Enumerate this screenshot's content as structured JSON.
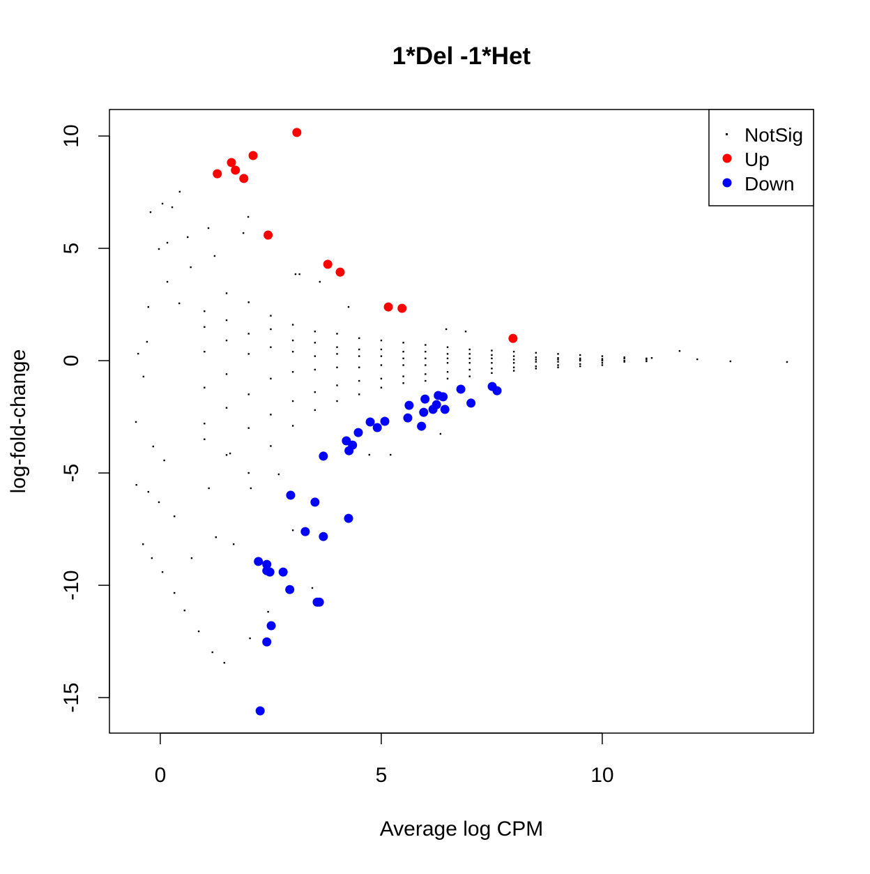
{
  "chart_data": {
    "type": "scatter",
    "title": "1*Del -1*Het",
    "xlabel": "Average log CPM",
    "ylabel": "log-fold-change",
    "xlim": [
      -1.15,
      14.78
    ],
    "ylim": [
      -16.58,
      11.18
    ],
    "xticks": [
      0,
      5,
      10
    ],
    "yticks": [
      -15,
      -10,
      -5,
      0,
      5,
      10
    ],
    "grid": false,
    "legend": {
      "position": "top-right",
      "entries": [
        {
          "label": "NotSig",
          "color": "#000000",
          "marker": "dot"
        },
        {
          "label": "Up",
          "color": "#ff0000",
          "marker": "circle"
        },
        {
          "label": "Down",
          "color": "#0000ff",
          "marker": "circle"
        }
      ]
    },
    "series": [
      {
        "name": "Up",
        "color": "#ff0000",
        "points": [
          [
            1.29,
            8.32
          ],
          [
            1.61,
            8.82
          ],
          [
            1.7,
            8.48
          ],
          [
            1.89,
            8.11
          ],
          [
            2.1,
            9.13
          ],
          [
            3.09,
            10.16
          ],
          [
            2.44,
            5.59
          ],
          [
            3.79,
            4.29
          ],
          [
            4.07,
            3.94
          ],
          [
            5.16,
            2.39
          ],
          [
            5.47,
            2.33
          ],
          [
            7.98,
            0.99
          ]
        ]
      },
      {
        "name": "Down",
        "color": "#0000ff",
        "points": [
          [
            2.26,
            -15.59
          ],
          [
            2.41,
            -12.52
          ],
          [
            2.51,
            -11.8
          ],
          [
            3.55,
            -10.75
          ],
          [
            3.6,
            -10.75
          ],
          [
            2.93,
            -10.19
          ],
          [
            2.78,
            -9.41
          ],
          [
            2.22,
            -8.94
          ],
          [
            2.41,
            -9.07
          ],
          [
            2.48,
            -9.41
          ],
          [
            2.41,
            -9.35
          ],
          [
            3.28,
            -7.61
          ],
          [
            3.69,
            -7.83
          ],
          [
            4.26,
            -7.02
          ],
          [
            2.95,
            -5.99
          ],
          [
            3.5,
            -6.3
          ],
          [
            3.69,
            -4.25
          ],
          [
            4.27,
            -4.01
          ],
          [
            4.21,
            -3.57
          ],
          [
            4.35,
            -3.76
          ],
          [
            4.48,
            -3.2
          ],
          [
            4.75,
            -2.73
          ],
          [
            4.91,
            -2.98
          ],
          [
            5.08,
            -2.7
          ],
          [
            5.6,
            -2.55
          ],
          [
            5.63,
            -1.99
          ],
          [
            5.91,
            -2.92
          ],
          [
            5.96,
            -2.3
          ],
          [
            5.99,
            -1.71
          ],
          [
            6.17,
            -2.17
          ],
          [
            6.25,
            -1.96
          ],
          [
            6.29,
            -1.55
          ],
          [
            6.4,
            -1.61
          ],
          [
            6.44,
            -2.17
          ],
          [
            6.8,
            -1.27
          ],
          [
            7.03,
            -1.89
          ],
          [
            7.51,
            -1.15
          ],
          [
            7.62,
            -1.34
          ]
        ]
      },
      {
        "name": "NotSig",
        "color": "#000000",
        "points": [
          [
            0.44,
            7.52
          ],
          [
            0.05,
            6.99
          ],
          [
            -0.22,
            6.61
          ],
          [
            0.27,
            6.83
          ],
          [
            1.09,
            5.9
          ],
          [
            1.99,
            6.4
          ],
          [
            -0.03,
            4.97
          ],
          [
            0.16,
            5.25
          ],
          [
            0.62,
            5.5
          ],
          [
            1.88,
            5.68
          ],
          [
            0.16,
            3.51
          ],
          [
            0.69,
            4.16
          ],
          [
            1.23,
            4.66
          ],
          [
            3.06,
            3.85
          ],
          [
            3.61,
            3.51
          ],
          [
            -0.27,
            2.39
          ],
          [
            0.43,
            2.55
          ],
          [
            -0.3,
            0.84
          ],
          [
            -0.5,
            0.31
          ],
          [
            -0.38,
            -0.71
          ],
          [
            -0.55,
            -2.73
          ],
          [
            -0.16,
            -3.82
          ],
          [
            0.09,
            -4.44
          ],
          [
            -0.54,
            -5.53
          ],
          [
            -0.27,
            -5.84
          ],
          [
            -0.03,
            -6.3
          ],
          [
            0.32,
            -6.93
          ],
          [
            -0.39,
            -8.17
          ],
          [
            -0.19,
            -8.79
          ],
          [
            0.05,
            -9.41
          ],
          [
            0.32,
            -10.34
          ],
          [
            0.55,
            -11.12
          ],
          [
            0.87,
            -12.05
          ],
          [
            1.18,
            -12.98
          ],
          [
            1.45,
            -13.45
          ],
          [
            0.71,
            -8.79
          ],
          [
            1.26,
            -7.86
          ],
          [
            1.66,
            -8.17
          ],
          [
            1.1,
            -5.68
          ],
          [
            2.05,
            -5.68
          ],
          [
            1.58,
            -4.13
          ],
          [
            2.68,
            -5.06
          ],
          [
            2.03,
            -12.36
          ],
          [
            2.44,
            -11.18
          ],
          [
            3.44,
            -10.12
          ],
          [
            3.0,
            -7.55
          ],
          [
            4.73,
            -4.19
          ],
          [
            5.21,
            -4.19
          ],
          [
            6.34,
            -3.26
          ],
          [
            12.9,
            -0.03
          ],
          [
            14.18,
            -0.06
          ],
          [
            12.15,
            0.06
          ],
          [
            11.75,
            0.43
          ],
          [
            11.12,
            0.12
          ],
          [
            6.91,
            1.3
          ],
          [
            6.47,
            1.4
          ],
          [
            4.26,
            2.39
          ],
          [
            3.15,
            3.85
          ],
          [
            1.0,
            1.5
          ],
          [
            1.0,
            -1.2
          ],
          [
            1.0,
            -2.8
          ],
          [
            1.0,
            0.4
          ],
          [
            1.0,
            -3.5
          ],
          [
            1.0,
            2.2
          ],
          [
            1.5,
            1.8
          ],
          [
            1.5,
            -0.6
          ],
          [
            1.5,
            -2.1
          ],
          [
            1.5,
            0.9
          ],
          [
            1.5,
            -4.2
          ],
          [
            1.5,
            3.0
          ],
          [
            2.0,
            2.6
          ],
          [
            2.0,
            -1.5
          ],
          [
            2.0,
            0.3
          ],
          [
            2.0,
            -3.0
          ],
          [
            2.0,
            1.2
          ],
          [
            2.0,
            -5.0
          ],
          [
            2.5,
            2.0
          ],
          [
            2.5,
            -0.8
          ],
          [
            2.5,
            0.6
          ],
          [
            2.5,
            -2.4
          ],
          [
            2.5,
            1.4
          ],
          [
            2.5,
            -3.8
          ],
          [
            3.0,
            1.6
          ],
          [
            3.0,
            -0.5
          ],
          [
            3.0,
            0.4
          ],
          [
            3.0,
            -1.8
          ],
          [
            3.0,
            0.9
          ],
          [
            3.0,
            -2.9
          ],
          [
            3.5,
            1.3
          ],
          [
            3.5,
            -0.4
          ],
          [
            3.5,
            0.2
          ],
          [
            3.5,
            -1.4
          ],
          [
            3.5,
            0.8
          ],
          [
            3.5,
            -2.2
          ],
          [
            4.0,
            1.2
          ],
          [
            4.0,
            -0.3
          ],
          [
            4.0,
            0.3
          ],
          [
            4.0,
            -1.1
          ],
          [
            4.0,
            0.6
          ],
          [
            4.0,
            -1.8
          ],
          [
            4.5,
            1.0
          ],
          [
            4.5,
            -0.3
          ],
          [
            4.5,
            0.2
          ],
          [
            4.5,
            -0.9
          ],
          [
            4.5,
            0.5
          ],
          [
            4.5,
            -1.5
          ],
          [
            5.0,
            0.9
          ],
          [
            5.0,
            -0.2
          ],
          [
            5.0,
            0.2
          ],
          [
            5.0,
            -0.8
          ],
          [
            5.0,
            0.5
          ],
          [
            5.0,
            -1.2
          ],
          [
            5.5,
            0.8
          ],
          [
            5.5,
            -0.2
          ],
          [
            5.5,
            0.1
          ],
          [
            5.5,
            -0.7
          ],
          [
            5.5,
            0.4
          ],
          [
            5.5,
            -1.0
          ],
          [
            6.0,
            0.7
          ],
          [
            6.0,
            -0.2
          ],
          [
            6.0,
            0.1
          ],
          [
            6.0,
            -0.6
          ],
          [
            6.0,
            0.4
          ],
          [
            6.0,
            -0.9
          ],
          [
            6.5,
            0.6
          ],
          [
            6.5,
            -0.1
          ],
          [
            6.5,
            0.1
          ],
          [
            6.5,
            -0.5
          ],
          [
            6.5,
            0.3
          ],
          [
            6.5,
            -0.8
          ],
          [
            7.0,
            0.5
          ],
          [
            7.0,
            -0.1
          ],
          [
            7.0,
            0.1
          ],
          [
            7.0,
            -0.4
          ],
          [
            7.0,
            0.3
          ],
          [
            7.0,
            -0.7
          ],
          [
            7.5,
            0.45
          ],
          [
            7.5,
            -0.1
          ],
          [
            7.5,
            0.1
          ],
          [
            7.5,
            -0.35
          ],
          [
            7.5,
            0.25
          ],
          [
            7.5,
            -0.55
          ],
          [
            8.0,
            0.4
          ],
          [
            8.0,
            -0.1
          ],
          [
            8.0,
            0.05
          ],
          [
            8.0,
            -0.3
          ],
          [
            8.0,
            0.2
          ],
          [
            8.0,
            -0.45
          ],
          [
            8.5,
            0.35
          ],
          [
            8.5,
            -0.05
          ],
          [
            8.5,
            0.05
          ],
          [
            8.5,
            -0.25
          ],
          [
            8.5,
            0.15
          ],
          [
            8.5,
            -0.35
          ],
          [
            9.0,
            0.3
          ],
          [
            9.0,
            -0.05
          ],
          [
            9.0,
            0.05
          ],
          [
            9.0,
            -0.2
          ],
          [
            9.0,
            0.12
          ],
          [
            9.0,
            -0.3
          ],
          [
            9.5,
            0.25
          ],
          [
            9.5,
            0.0
          ],
          [
            9.5,
            0.05
          ],
          [
            9.5,
            -0.15
          ],
          [
            9.5,
            0.1
          ],
          [
            9.5,
            -0.25
          ],
          [
            10.0,
            0.2
          ],
          [
            10.0,
            0.0
          ],
          [
            10.0,
            0.03
          ],
          [
            10.0,
            -0.1
          ],
          [
            10.0,
            0.08
          ],
          [
            10.0,
            -0.2
          ],
          [
            10.5,
            0.15
          ],
          [
            10.5,
            0.0
          ],
          [
            10.5,
            -0.05
          ],
          [
            10.5,
            0.1
          ],
          [
            11.0,
            0.1
          ],
          [
            11.0,
            -0.03
          ],
          [
            11.0,
            0.05
          ]
        ]
      }
    ]
  }
}
